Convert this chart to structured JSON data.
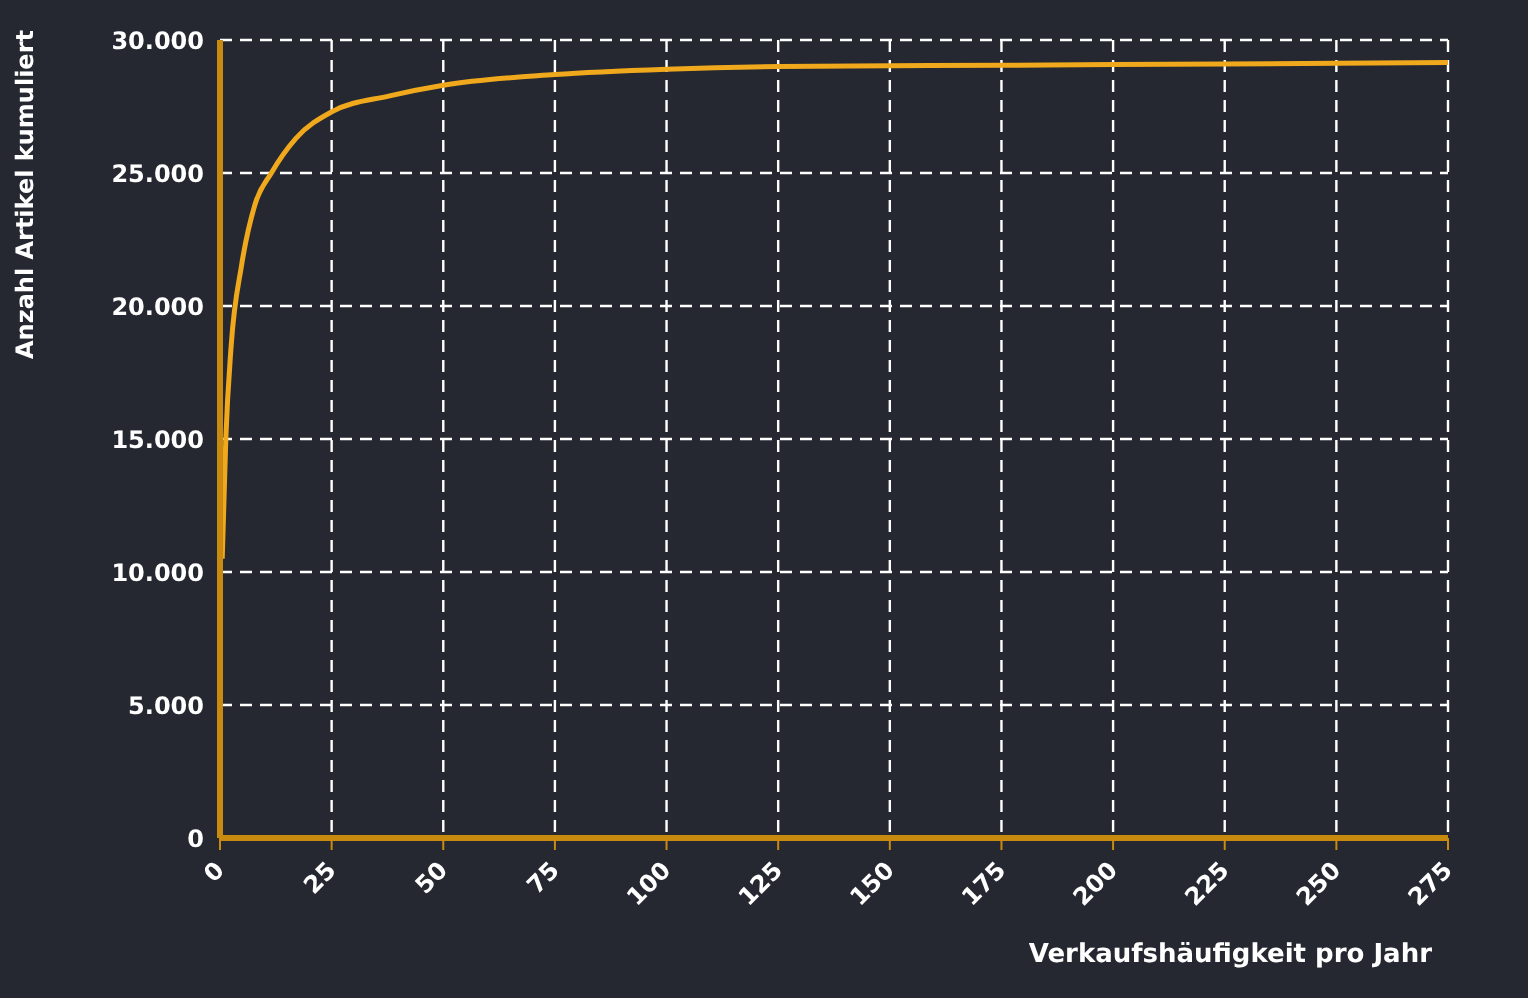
{
  "chart_data": {
    "type": "line",
    "xlabel": "Verkaufshäufigkeit pro Jahr",
    "ylabel": "Anzahl Artikel kumuliert",
    "series": [
      {
        "color": "#f0a81c",
        "x": [
          0.5,
          1.3,
          2.5,
          4.8,
          7.8,
          11.5,
          17,
          25,
          38,
          50,
          75,
          100,
          125,
          175,
          225,
          275
        ],
        "values": [
          10500,
          15000,
          18500,
          21500,
          23800,
          25000,
          26300,
          27300,
          27900,
          28300,
          28700,
          28900,
          29000,
          29050,
          29100,
          29150
        ]
      }
    ],
    "xlim": [
      0,
      275
    ],
    "xticks": [
      0,
      25,
      50,
      75,
      100,
      125,
      150,
      175,
      200,
      225,
      250,
      275
    ],
    "ylim": [
      0,
      30000
    ],
    "yticks": [
      {
        "value": 0,
        "label": "0"
      },
      {
        "value": 5000,
        "label": "5.000"
      },
      {
        "value": 10000,
        "label": "10.000"
      },
      {
        "value": 15000,
        "label": "15.000"
      },
      {
        "value": 20000,
        "label": "20.000"
      },
      {
        "value": 25000,
        "label": "25.000"
      },
      {
        "value": 30000,
        "label": "30.000"
      }
    ],
    "grid": true,
    "marker": "none",
    "line_style": "solid"
  }
}
